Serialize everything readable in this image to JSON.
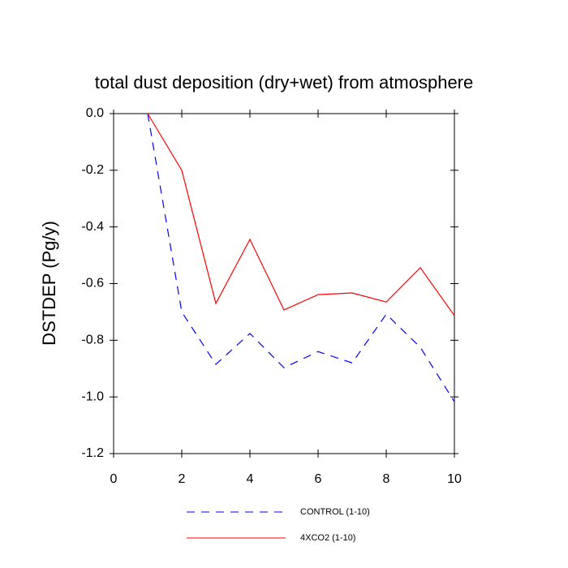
{
  "chart_data": {
    "type": "line",
    "title": "total dust deposition (dry+wet) from atmosphere",
    "y_label": "DSTDEP  (Pg/y)",
    "x": [
      1,
      2,
      3,
      4,
      5,
      6,
      7,
      8,
      9,
      10
    ],
    "series": [
      {
        "name": "CONTROL (1-10)",
        "color": "#0000ff",
        "line_style": "dashed",
        "values": [
          0.0,
          -0.7,
          -0.885,
          -0.776,
          -0.897,
          -0.84,
          -0.88,
          -0.708,
          -0.825,
          -1.017
        ]
      },
      {
        "name": "4XCO2 (1-10)",
        "color": "#ff0000",
        "line_style": "solid",
        "values": [
          0.0,
          -0.2,
          -0.67,
          -0.444,
          -0.693,
          -0.639,
          -0.633,
          -0.665,
          -0.544,
          -0.713
        ]
      }
    ],
    "xlim": [
      0,
      10
    ],
    "xticks": [
      0,
      2,
      4,
      6,
      8,
      10
    ],
    "ylim": [
      -1.2,
      0.0
    ],
    "yticks": [
      {
        "value": 0,
        "label": "0.0"
      },
      -0.2,
      -0.4,
      -0.6,
      -0.8,
      {
        "value": -1,
        "label": "-1.0"
      },
      -1.2
    ],
    "grid": false,
    "legend": "bottom"
  }
}
